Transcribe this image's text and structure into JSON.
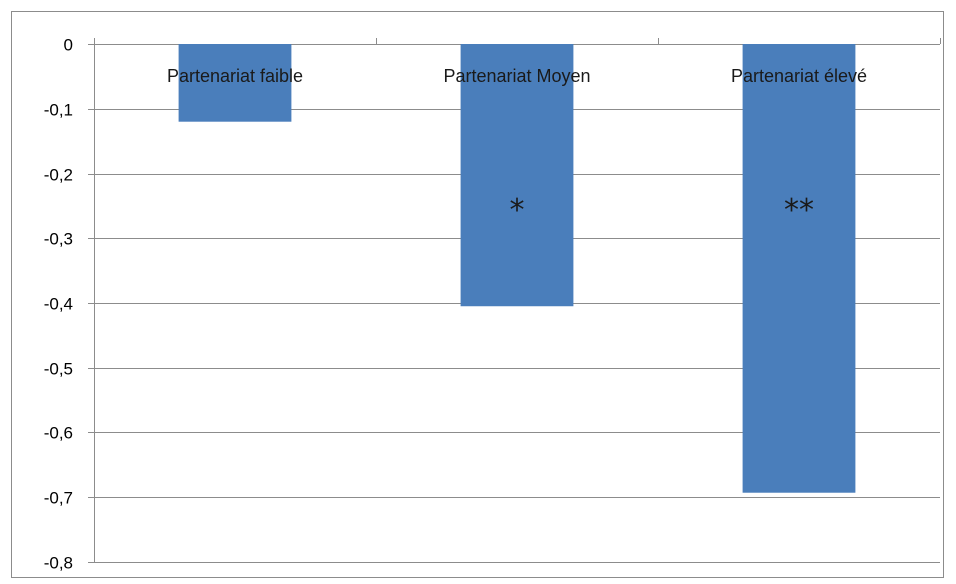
{
  "chart_data": {
    "type": "bar",
    "categories": [
      "Partenariat faible",
      "Partenariat Moyen",
      "Partenariat élevé"
    ],
    "values": [
      -0.12,
      -0.405,
      -0.693
    ],
    "annotations": [
      "",
      "*",
      "**"
    ],
    "title": "",
    "xlabel": "",
    "ylabel": "",
    "ylim": [
      -0.8,
      0
    ],
    "yticks": [
      0,
      -0.1,
      -0.2,
      -0.3,
      -0.4,
      -0.5,
      -0.6,
      -0.7,
      -0.8
    ],
    "ytick_labels": [
      "0",
      "-0,1",
      "-0,2",
      "-0,3",
      "-0,4",
      "-0,5",
      "-0,6",
      "-0,7",
      "-0,8"
    ],
    "grid": true,
    "legend": "none",
    "bar_color": "#4a7ebb",
    "grid_color": "#8c8c8c"
  }
}
